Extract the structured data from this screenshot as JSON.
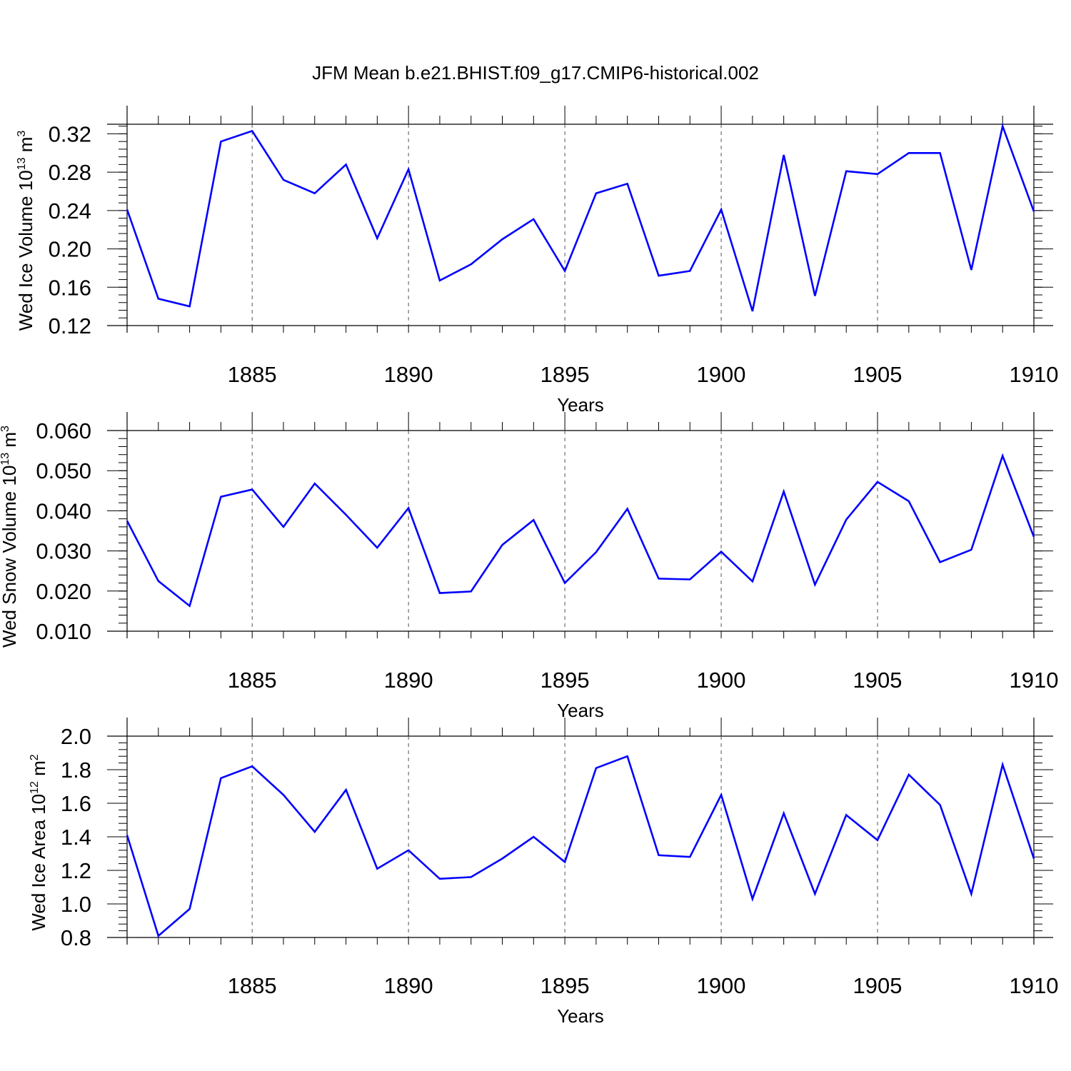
{
  "title": "JFM Mean b.e21.BHIST.f09_g17.CMIP6-historical.002",
  "line_color": "#0000ff",
  "chart_data": [
    {
      "type": "line",
      "ylabel": "Wed Ice Volume",
      "unit_base": "10",
      "unit_exp": "13",
      "unit_sym": "m",
      "unit_pow": "3",
      "xlabel": "Years",
      "xlim": [
        1881,
        1910
      ],
      "ylim": [
        0.12,
        0.33
      ],
      "yticks": [
        0.12,
        0.16,
        0.2,
        0.24,
        0.28,
        0.32
      ],
      "yticklabels": [
        "0.12",
        "0.16",
        "0.20",
        "0.24",
        "0.28",
        "0.32"
      ],
      "xticks": [
        1885,
        1890,
        1895,
        1900,
        1905,
        1910
      ],
      "xticklabels": [
        "1885",
        "1890",
        "1895",
        "1900",
        "1905",
        "1910"
      ],
      "x": [
        1881,
        1882,
        1883,
        1884,
        1885,
        1886,
        1887,
        1888,
        1889,
        1890,
        1891,
        1892,
        1893,
        1894,
        1895,
        1896,
        1897,
        1898,
        1899,
        1900,
        1901,
        1902,
        1903,
        1904,
        1905,
        1906,
        1907,
        1908,
        1909,
        1910
      ],
      "values": [
        0.241,
        0.148,
        0.14,
        0.312,
        0.323,
        0.272,
        0.258,
        0.288,
        0.211,
        0.283,
        0.167,
        0.184,
        0.21,
        0.231,
        0.177,
        0.258,
        0.268,
        0.172,
        0.177,
        0.241,
        0.135,
        0.298,
        0.151,
        0.281,
        0.278,
        0.3,
        0.3,
        0.178,
        0.328,
        0.239
      ]
    },
    {
      "type": "line",
      "ylabel": "Wed Snow Volume",
      "unit_base": "10",
      "unit_exp": "13",
      "unit_sym": "m",
      "unit_pow": "3",
      "xlabel": "Years",
      "xlim": [
        1881,
        1910
      ],
      "ylim": [
        0.01,
        0.06
      ],
      "yticks": [
        0.01,
        0.02,
        0.03,
        0.04,
        0.05,
        0.06
      ],
      "yticklabels": [
        "0.010",
        "0.020",
        "0.030",
        "0.040",
        "0.050",
        "0.060"
      ],
      "xticks": [
        1885,
        1890,
        1895,
        1900,
        1905,
        1910
      ],
      "xticklabels": [
        "1885",
        "1890",
        "1895",
        "1900",
        "1905",
        "1910"
      ],
      "x": [
        1881,
        1882,
        1883,
        1884,
        1885,
        1886,
        1887,
        1888,
        1889,
        1890,
        1891,
        1892,
        1893,
        1894,
        1895,
        1896,
        1897,
        1898,
        1899,
        1900,
        1901,
        1902,
        1903,
        1904,
        1905,
        1906,
        1907,
        1908,
        1909,
        1910
      ],
      "values": [
        0.0375,
        0.0225,
        0.0163,
        0.0435,
        0.0453,
        0.036,
        0.0468,
        0.039,
        0.0308,
        0.0407,
        0.0195,
        0.0199,
        0.0315,
        0.0377,
        0.022,
        0.0297,
        0.0405,
        0.0231,
        0.0229,
        0.0298,
        0.0224,
        0.0448,
        0.0216,
        0.0378,
        0.0472,
        0.0424,
        0.0272,
        0.0303,
        0.0537,
        0.0335
      ]
    },
    {
      "type": "line",
      "ylabel": "Wed Ice Area",
      "unit_base": "10",
      "unit_exp": "12",
      "unit_sym": "m",
      "unit_pow": "2",
      "xlabel": "Years",
      "xlim": [
        1881,
        1910
      ],
      "ylim": [
        0.8,
        2.0
      ],
      "yticks": [
        0.8,
        1.0,
        1.2,
        1.4,
        1.6,
        1.8,
        2.0
      ],
      "yticklabels": [
        "0.8",
        "1.0",
        "1.2",
        "1.4",
        "1.6",
        "1.8",
        "2.0"
      ],
      "xticks": [
        1885,
        1890,
        1895,
        1900,
        1905,
        1910
      ],
      "xticklabels": [
        "1885",
        "1890",
        "1895",
        "1900",
        "1905",
        "1910"
      ],
      "x": [
        1881,
        1882,
        1883,
        1884,
        1885,
        1886,
        1887,
        1888,
        1889,
        1890,
        1891,
        1892,
        1893,
        1894,
        1895,
        1896,
        1897,
        1898,
        1899,
        1900,
        1901,
        1902,
        1903,
        1904,
        1905,
        1906,
        1907,
        1908,
        1909,
        1910
      ],
      "values": [
        1.41,
        0.81,
        0.97,
        1.75,
        1.82,
        1.65,
        1.43,
        1.68,
        1.21,
        1.32,
        1.15,
        1.16,
        1.27,
        1.4,
        1.25,
        1.81,
        1.88,
        1.29,
        1.28,
        1.65,
        1.03,
        1.54,
        1.06,
        1.53,
        1.38,
        1.77,
        1.59,
        1.06,
        1.83,
        1.27
      ]
    }
  ]
}
